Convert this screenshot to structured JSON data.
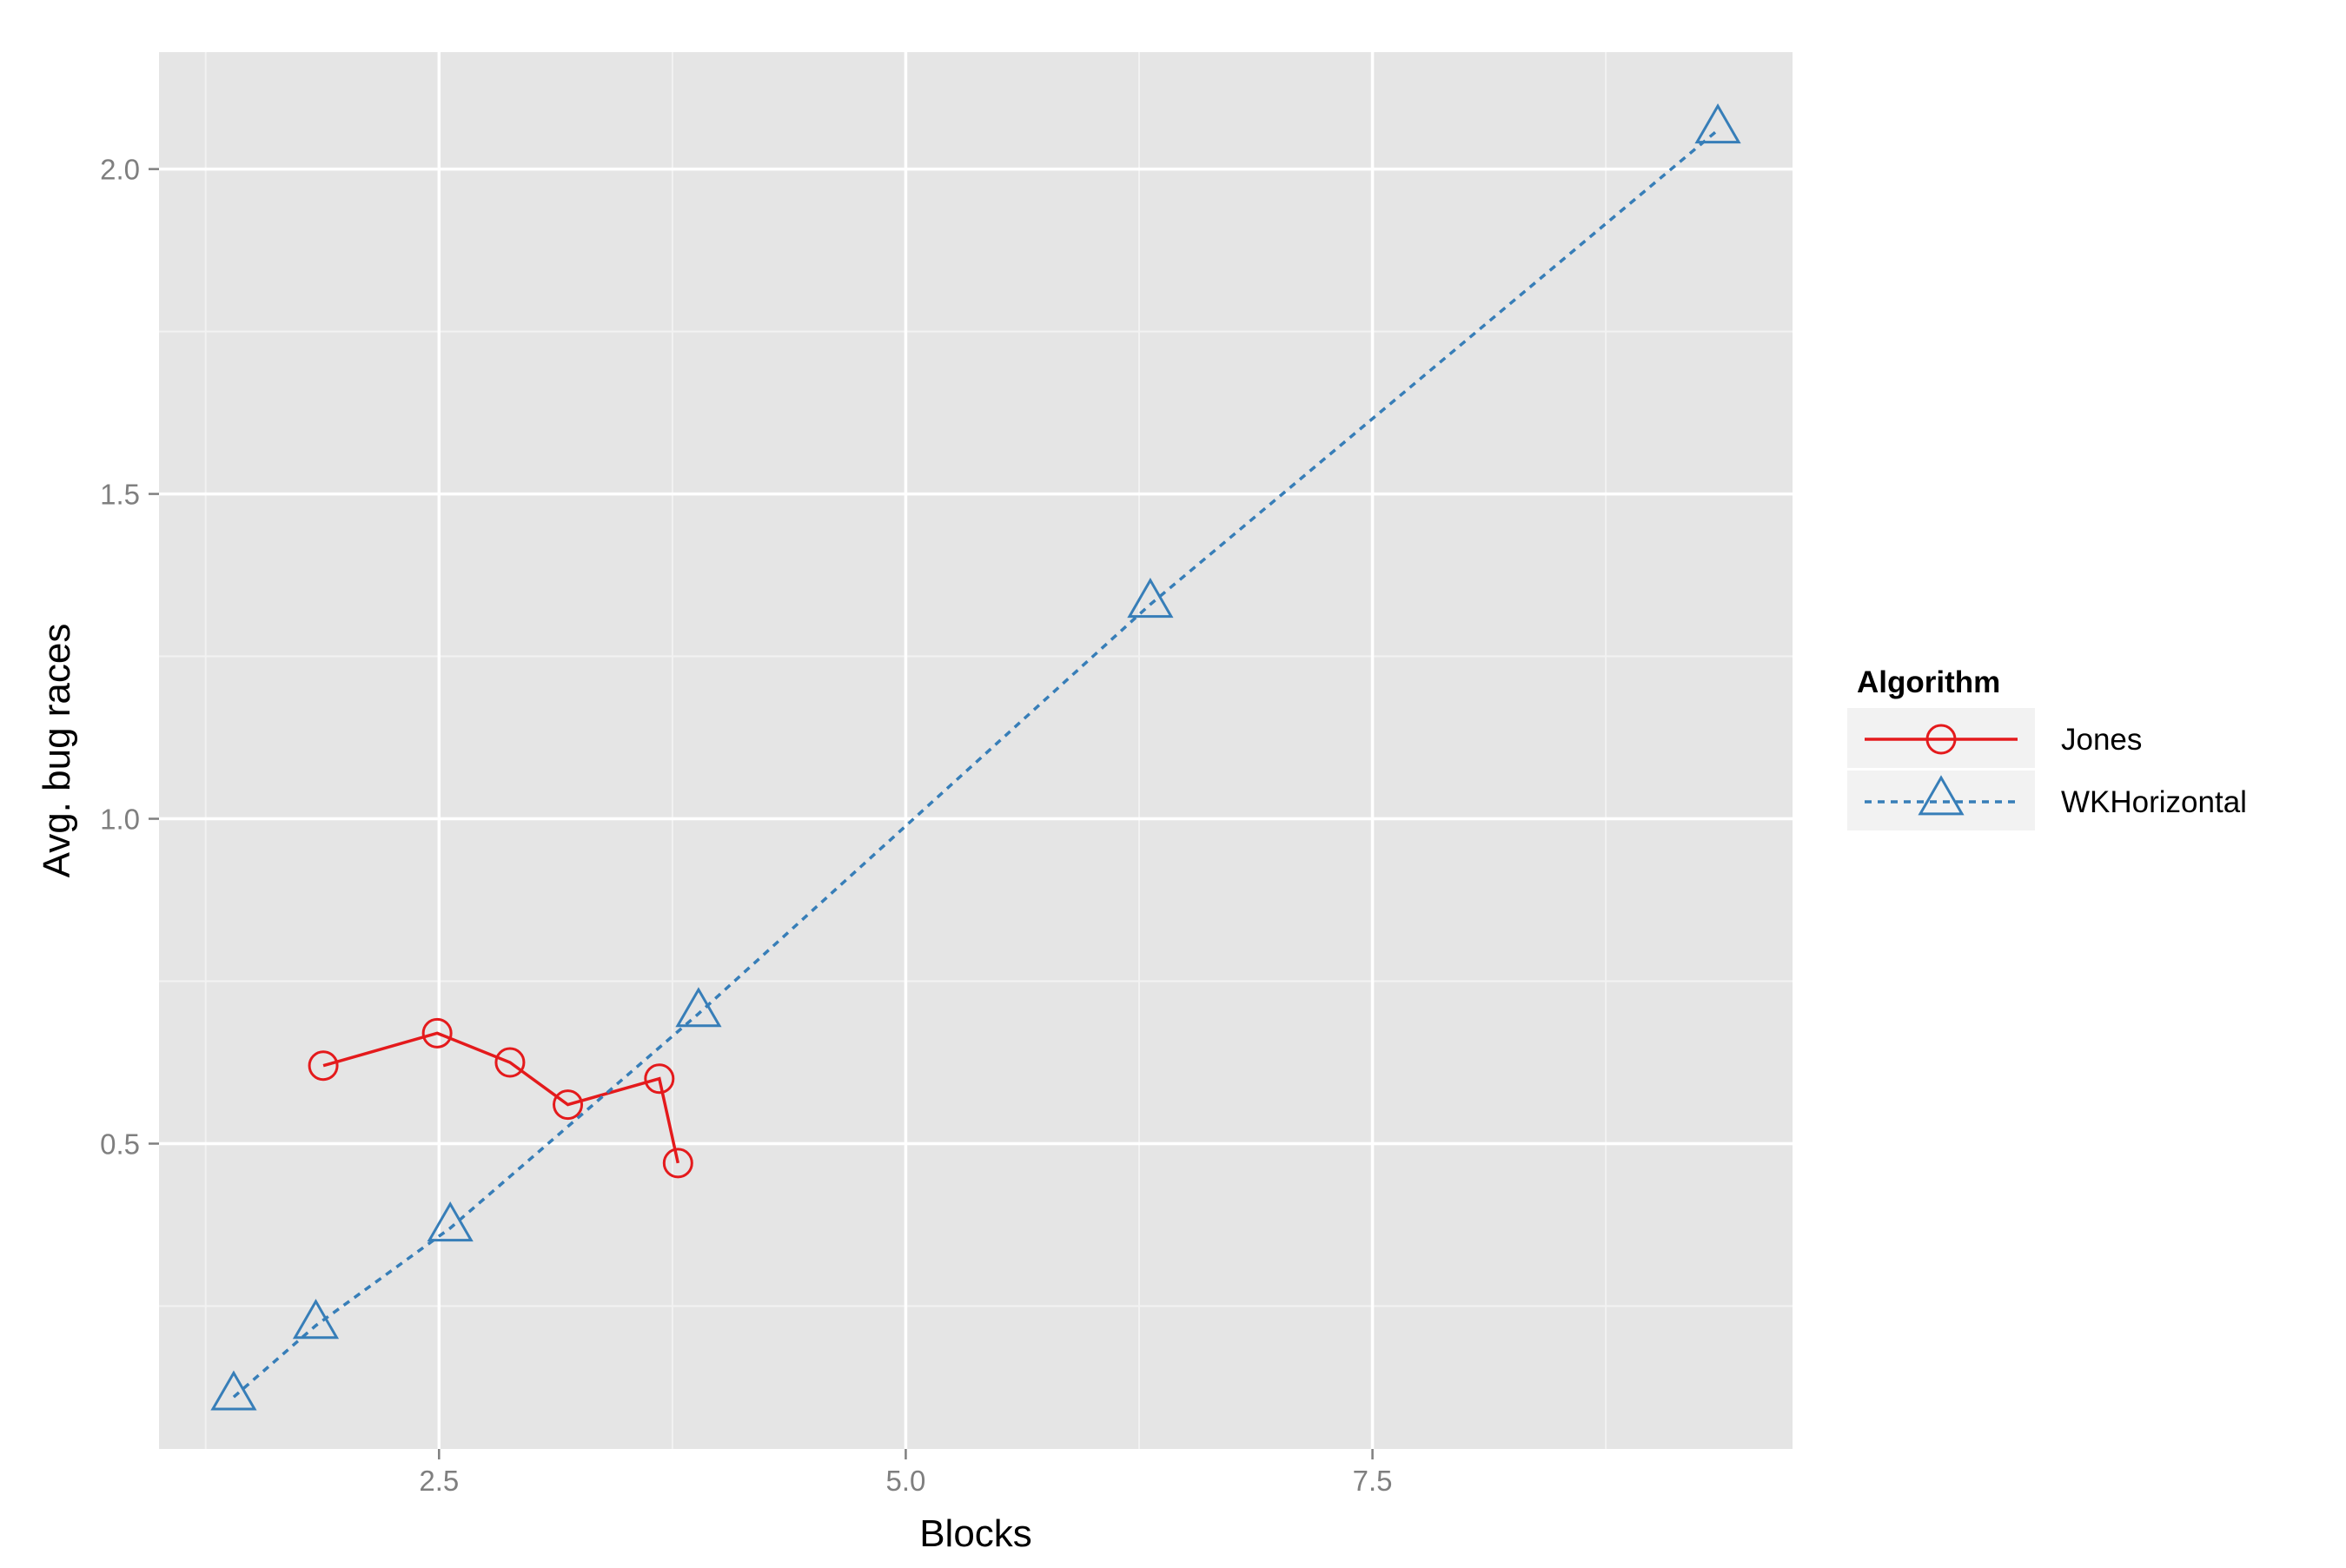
{
  "chart_data": {
    "type": "line",
    "title": "",
    "xlabel": "Blocks",
    "ylabel": "Avg. bug races",
    "xlim": [
      1.0,
      9.75
    ],
    "ylim": [
      0.03,
      2.18
    ],
    "x_ticks": [
      2.5,
      5.0,
      7.5
    ],
    "x_tick_labels": [
      "2.5",
      "5.0",
      "7.5"
    ],
    "x_minor_ticks": [
      1.25,
      3.75,
      6.25,
      8.75
    ],
    "y_ticks": [
      0.5,
      1.0,
      1.5,
      2.0
    ],
    "y_tick_labels": [
      "0.5",
      "1.0",
      "1.5",
      "2.0"
    ],
    "y_minor_ticks": [
      0.25,
      0.75,
      1.25,
      1.75
    ],
    "grid": true,
    "panel_background": "#e5e5e5",
    "legend": {
      "title": "Algorithm",
      "position": "right"
    },
    "series": [
      {
        "name": "Jones",
        "color": "#e41a1c",
        "line_style": "solid",
        "marker": "circle",
        "x": [
          1.88,
          2.49,
          2.88,
          3.19,
          3.68,
          3.78
        ],
        "y": [
          0.62,
          0.67,
          0.625,
          0.56,
          0.6,
          0.47
        ]
      },
      {
        "name": "WKHorizontal",
        "color": "#377eb8",
        "line_style": "dashed",
        "marker": "triangle",
        "x": [
          1.4,
          1.84,
          2.56,
          3.89,
          6.31,
          9.35
        ],
        "y": [
          0.11,
          0.22,
          0.37,
          0.7,
          1.33,
          2.06
        ]
      }
    ]
  }
}
